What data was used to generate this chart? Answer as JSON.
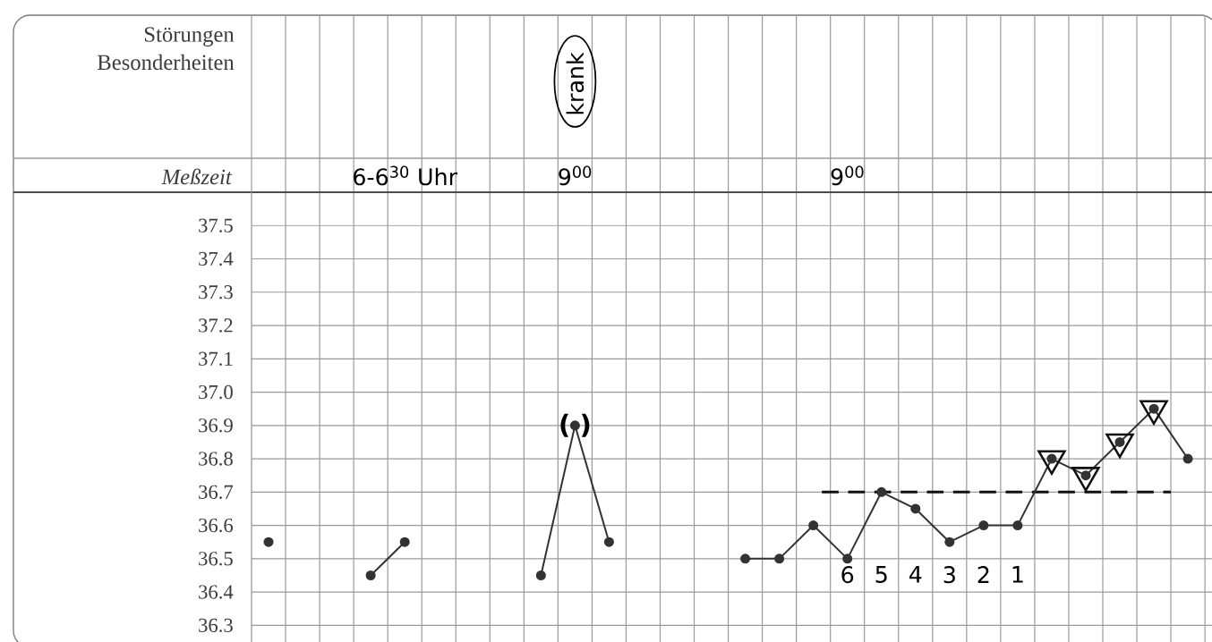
{
  "chart_data": {
    "type": "line",
    "xlabel": "Meßzeit",
    "categories": [
      null,
      null,
      null,
      null,
      "6-6$^{30}$ Uhr",
      null,
      null,
      null,
      null,
      "9$^{00}$",
      null,
      null,
      null,
      null,
      null,
      null,
      null,
      "9$^{00}$",
      null,
      null,
      null,
      null,
      null,
      null,
      null,
      null,
      null,
      null
    ],
    "series": [
      {
        "color": "#333333",
        "values": [
          36.55,
          null,
          null,
          36.45,
          36.55,
          null,
          null,
          null,
          36.45,
          36.9,
          36.55,
          null,
          null,
          null,
          36.5,
          36.5,
          36.6,
          36.5,
          36.7,
          36.65,
          36.55,
          36.6,
          36.6,
          36.8,
          36.75,
          36.85,
          36.95,
          36.8
        ]
      },
      {
        "type": "scatter",
        "marker": "triangle",
        "color": "#111111",
        "values": [
          null,
          null,
          null,
          null,
          null,
          null,
          null,
          null,
          null,
          null,
          null,
          null,
          null,
          null,
          null,
          null,
          null,
          null,
          null,
          null,
          null,
          null,
          null,
          36.8,
          36.75,
          36.85,
          36.95,
          null
        ]
      }
    ],
    "ylim": [
      36.25,
      37.6
    ],
    "yticks": [
      36.3,
      36.4,
      36.5,
      36.6,
      36.7,
      36.8,
      36.9,
      {
        "value": 37.0,
        "label": "37.0"
      },
      37.1,
      37.2,
      37.3,
      37.4,
      37.5
    ],
    "grid": true,
    "marker": "circle",
    "ref_lines": [
      {
        "axis": "y",
        "value": 36.7,
        "line_style": "dashed",
        "color": "#111111"
      }
    ],
    "annotations": [
      "Störungen Besonderheiten",
      "krank",
      {
        "text": "( )",
        "y": 36.9
      },
      "6",
      "5",
      "4",
      "3",
      "2",
      "1"
    ]
  }
}
